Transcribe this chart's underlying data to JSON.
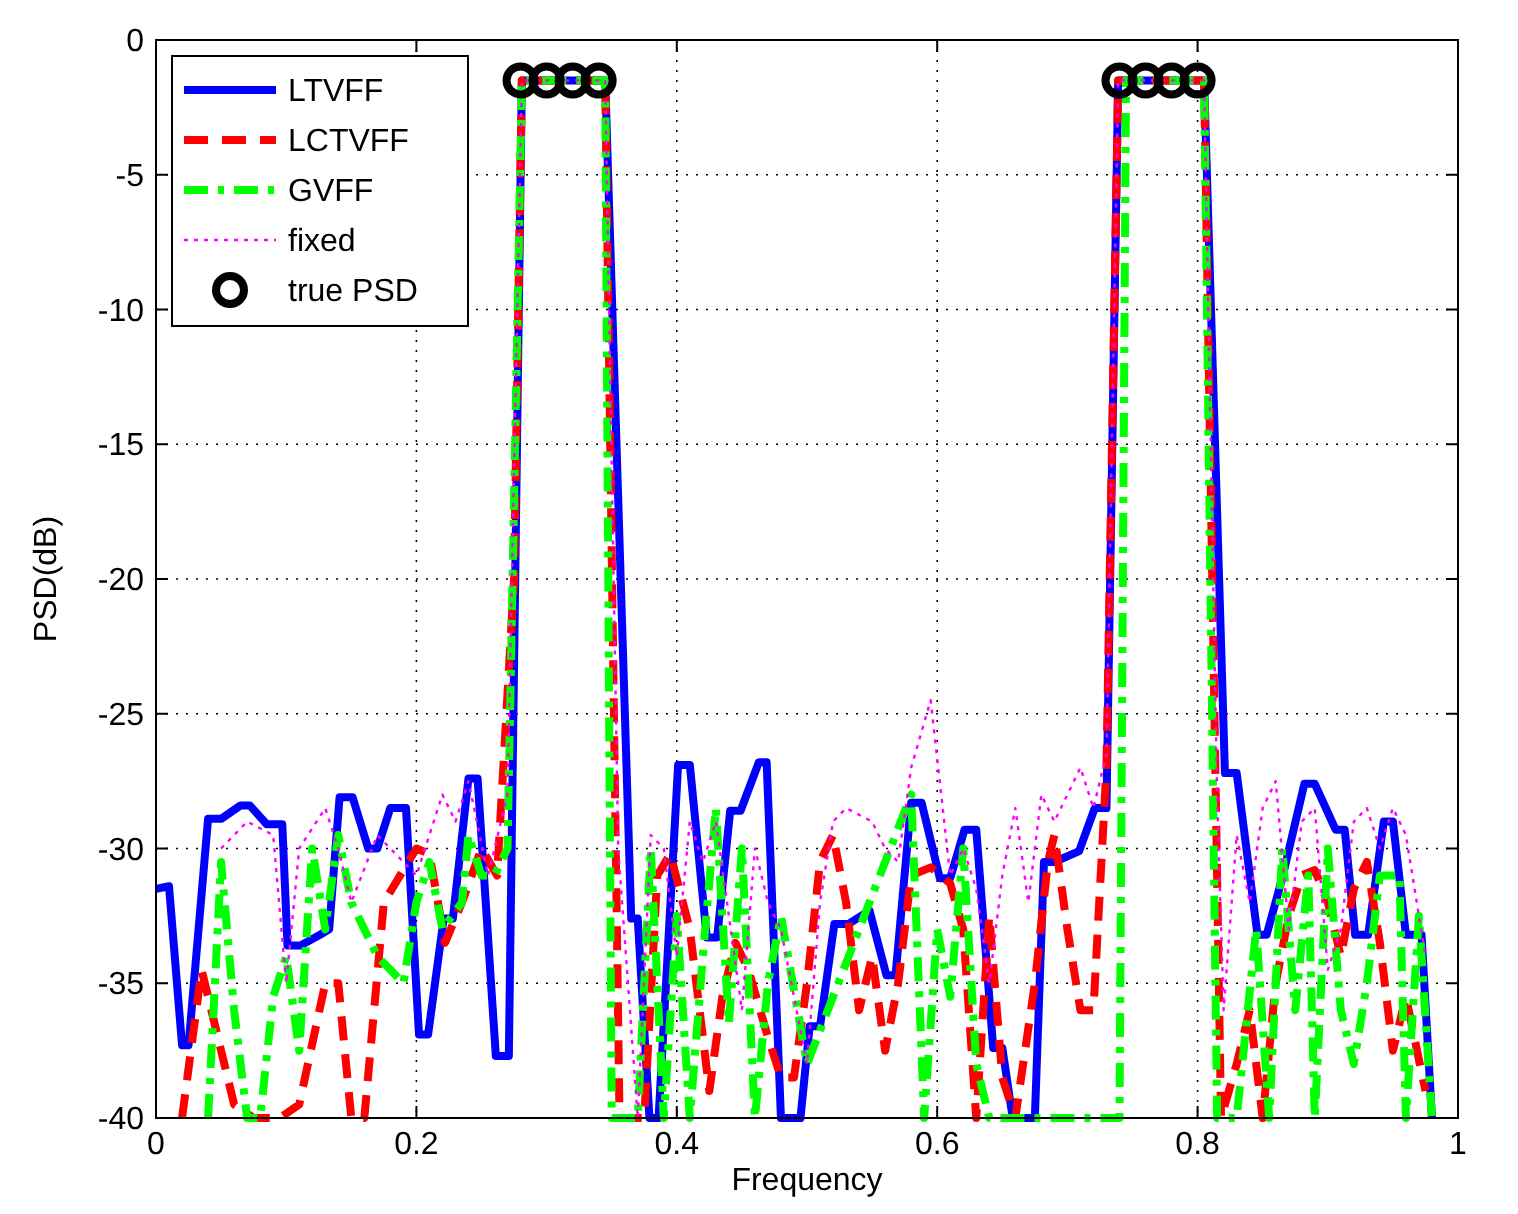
{
  "chart_data": {
    "type": "line",
    "xlabel": "Frequency",
    "ylabel": "PSD(dB)",
    "xlim": [
      0,
      1
    ],
    "ylim": [
      -40,
      0
    ],
    "xticks": [
      0,
      0.2,
      0.4,
      0.6,
      0.8,
      1
    ],
    "yticks": [
      -40,
      -35,
      -30,
      -25,
      -20,
      -15,
      -10,
      -5,
      0
    ],
    "grid": true,
    "legend": "top left",
    "series": [
      {
        "name": "LTVFF",
        "color": "#0000ff",
        "line_style": "solid",
        "marker": "none",
        "x": [
          0,
          0.01,
          0.02,
          0.025,
          0.04,
          0.05,
          0.065,
          0.072,
          0.085,
          0.097,
          0.101,
          0.111,
          0.126,
          0.133,
          0.141,
          0.151,
          0.163,
          0.17,
          0.18,
          0.192,
          0.202,
          0.209,
          0.221,
          0.228,
          0.24,
          0.247,
          0.261,
          0.271,
          0.281,
          0.345,
          0.365,
          0.37,
          0.379,
          0.386,
          0.401,
          0.41,
          0.423,
          0.431,
          0.441,
          0.449,
          0.463,
          0.469,
          0.48,
          0.495,
          0.502,
          0.51,
          0.521,
          0.532,
          0.548,
          0.561,
          0.568,
          0.58,
          0.588,
          0.602,
          0.61,
          0.621,
          0.63,
          0.643,
          0.65,
          0.658,
          0.675,
          0.682,
          0.69,
          0.709,
          0.721,
          0.73,
          0.739,
          0.805,
          0.821,
          0.83,
          0.846,
          0.853,
          0.865,
          0.882,
          0.89,
          0.906,
          0.913,
          0.921,
          0.931,
          0.943,
          0.95,
          0.96,
          0.972,
          0.98
        ],
        "values": [
          -31.5,
          -31.4,
          -37.3,
          -37.3,
          -28.9,
          -28.9,
          -28.4,
          -28.4,
          -29.1,
          -29.1,
          -33.6,
          -33.6,
          -33.2,
          -33,
          -28.1,
          -28.1,
          -30,
          -30,
          -28.5,
          -28.5,
          -36.9,
          -36.9,
          -32.6,
          -32.6,
          -27.4,
          -27.4,
          -37.7,
          -37.7,
          -1.5,
          -1.5,
          -32.6,
          -32.6,
          -40,
          -40,
          -26.9,
          -26.9,
          -33.3,
          -33.3,
          -28.6,
          -28.6,
          -26.8,
          -26.8,
          -40,
          -40,
          -36.6,
          -36.6,
          -32.8,
          -32.8,
          -32.3,
          -34.7,
          -34.7,
          -28.3,
          -28.3,
          -31.1,
          -31.1,
          -29.3,
          -29.3,
          -37.4,
          -37.4,
          -40,
          -40,
          -30.5,
          -30.5,
          -30.1,
          -28.5,
          -28.5,
          -1.5,
          -1.5,
          -27.2,
          -27.2,
          -33.2,
          -33.2,
          -31.1,
          -27.6,
          -27.6,
          -29.3,
          -29.3,
          -33.2,
          -33.2,
          -29,
          -29,
          -33.2,
          -33.2,
          -40
        ]
      },
      {
        "name": "LCTVFF",
        "color": "#ff0000",
        "line_style": "dashed",
        "marker": "none",
        "x": [
          0.02,
          0.035,
          0.05,
          0.06,
          0.075,
          0.095,
          0.11,
          0.13,
          0.14,
          0.15,
          0.16,
          0.175,
          0.19,
          0.2,
          0.21,
          0.222,
          0.235,
          0.25,
          0.262,
          0.275,
          0.281,
          0.345,
          0.356,
          0.375,
          0.385,
          0.395,
          0.41,
          0.425,
          0.435,
          0.445,
          0.455,
          0.47,
          0.48,
          0.49,
          0.5,
          0.51,
          0.52,
          0.53,
          0.54,
          0.55,
          0.56,
          0.57,
          0.58,
          0.595,
          0.61,
          0.62,
          0.63,
          0.64,
          0.65,
          0.66,
          0.675,
          0.685,
          0.69,
          0.7,
          0.71,
          0.72,
          0.73,
          0.739,
          0.805,
          0.818,
          0.83,
          0.84,
          0.85,
          0.86,
          0.87,
          0.88,
          0.89,
          0.9,
          0.91,
          0.92,
          0.93,
          0.94,
          0.95,
          0.96,
          0.975
        ],
        "values": [
          -40,
          -34.5,
          -37.5,
          -39.5,
          -40,
          -40,
          -39.5,
          -35,
          -35,
          -40,
          -40,
          -32,
          -30.8,
          -30,
          -30.2,
          -33.5,
          -32,
          -30,
          -31,
          -20,
          -1.5,
          -1.5,
          -40,
          -40,
          -31,
          -30.2,
          -33,
          -39,
          -35.5,
          -33.5,
          -34.5,
          -37,
          -38.5,
          -38.5,
          -35,
          -30.5,
          -29.5,
          -32,
          -36,
          -34,
          -37.5,
          -35,
          -31,
          -30.7,
          -31.3,
          -33,
          -40,
          -32.5,
          -38.5,
          -40,
          -35,
          -30.5,
          -29.5,
          -33,
          -36,
          -36,
          -27,
          -1.5,
          -1.5,
          -40,
          -38,
          -36,
          -40,
          -35,
          -32.5,
          -31,
          -30.8,
          -32,
          -34,
          -31.5,
          -30.5,
          -33.5,
          -37.5,
          -35.5,
          -39
        ]
      },
      {
        "name": "GVFF",
        "color": "#00ff00",
        "line_style": "dashdot",
        "marker": "none",
        "x": [
          0.04,
          0.05,
          0.06,
          0.07,
          0.08,
          0.09,
          0.1,
          0.11,
          0.12,
          0.13,
          0.14,
          0.15,
          0.16,
          0.17,
          0.18,
          0.19,
          0.2,
          0.21,
          0.22,
          0.235,
          0.24,
          0.25,
          0.26,
          0.27,
          0.281,
          0.345,
          0.35,
          0.37,
          0.38,
          0.39,
          0.4,
          0.41,
          0.42,
          0.43,
          0.44,
          0.45,
          0.46,
          0.47,
          0.48,
          0.5,
          0.58,
          0.59,
          0.6,
          0.61,
          0.62,
          0.63,
          0.64,
          0.66,
          0.74,
          0.745,
          0.805,
          0.815,
          0.83,
          0.845,
          0.855,
          0.865,
          0.875,
          0.885,
          0.89,
          0.9,
          0.91,
          0.92,
          0.93,
          0.94,
          0.955,
          0.96,
          0.97,
          0.98
        ],
        "values": [
          -40,
          -30.5,
          -36,
          -40,
          -40,
          -35.5,
          -34,
          -37.5,
          -30,
          -33,
          -29.5,
          -32,
          -33,
          -34,
          -34.5,
          -35,
          -32,
          -30.5,
          -33,
          -32,
          -29.5,
          -31,
          -31,
          -30,
          -1.5,
          -1.5,
          -40,
          -40,
          -30,
          -40,
          -32.5,
          -40,
          -34,
          -28.5,
          -36.5,
          -30,
          -40,
          -35,
          -32.5,
          -38,
          -28,
          -40,
          -33,
          -35.5,
          -30,
          -38,
          -40,
          -40,
          -40,
          -1.5,
          -1.5,
          -40,
          -40,
          -33,
          -40,
          -30,
          -36,
          -31,
          -40,
          -30,
          -36,
          -38,
          -35,
          -31,
          -31,
          -40,
          -32.5,
          -40
        ]
      },
      {
        "name": "fixed",
        "color": "#ff00ff",
        "line_style": "dotted",
        "marker": "none",
        "x": [
          0.05,
          0.07,
          0.09,
          0.1,
          0.11,
          0.13,
          0.14,
          0.15,
          0.17,
          0.19,
          0.2,
          0.21,
          0.22,
          0.23,
          0.24,
          0.255,
          0.27,
          0.281,
          0.345,
          0.355,
          0.37,
          0.38,
          0.39,
          0.4,
          0.41,
          0.42,
          0.43,
          0.45,
          0.46,
          0.47,
          0.48,
          0.5,
          0.51,
          0.52,
          0.53,
          0.55,
          0.56,
          0.57,
          0.58,
          0.595,
          0.61,
          0.62,
          0.63,
          0.64,
          0.65,
          0.66,
          0.67,
          0.68,
          0.69,
          0.7,
          0.71,
          0.72,
          0.73,
          0.739,
          0.805,
          0.815,
          0.82,
          0.83,
          0.84,
          0.85,
          0.86,
          0.87,
          0.88,
          0.89,
          0.9,
          0.91,
          0.92,
          0.93,
          0.94,
          0.95,
          0.96,
          0.975
        ],
        "values": [
          -30,
          -29,
          -29.5,
          -35,
          -30,
          -28.5,
          -30,
          -32,
          -29.5,
          -30.5,
          -31,
          -29.5,
          -28,
          -29,
          -27.5,
          -31,
          -28,
          -1.5,
          -1.5,
          -30,
          -40,
          -29.5,
          -30,
          -34,
          -29,
          -30.5,
          -29,
          -36,
          -30,
          -32,
          -33,
          -38,
          -32,
          -29,
          -28.5,
          -29,
          -30,
          -30.5,
          -27,
          -24.5,
          -31,
          -30,
          -31.5,
          -35,
          -31,
          -28.5,
          -32,
          -28,
          -29,
          -28,
          -27,
          -28.5,
          -26.5,
          -1.5,
          -1.5,
          -28,
          -36,
          -29.5,
          -32,
          -28.5,
          -27.5,
          -33,
          -29,
          -28.5,
          -34.5,
          -33,
          -29,
          -28.5,
          -30,
          -28.5,
          -29.5,
          -34
        ]
      },
      {
        "name": "true PSD",
        "type": "scatter",
        "color": "#000000",
        "marker": "circle",
        "x": [
          0.28,
          0.3,
          0.32,
          0.34,
          0.74,
          0.76,
          0.78,
          0.8
        ],
        "values": [
          -1.5,
          -1.5,
          -1.5,
          -1.5,
          -1.5,
          -1.5,
          -1.5,
          -1.5
        ]
      }
    ]
  }
}
